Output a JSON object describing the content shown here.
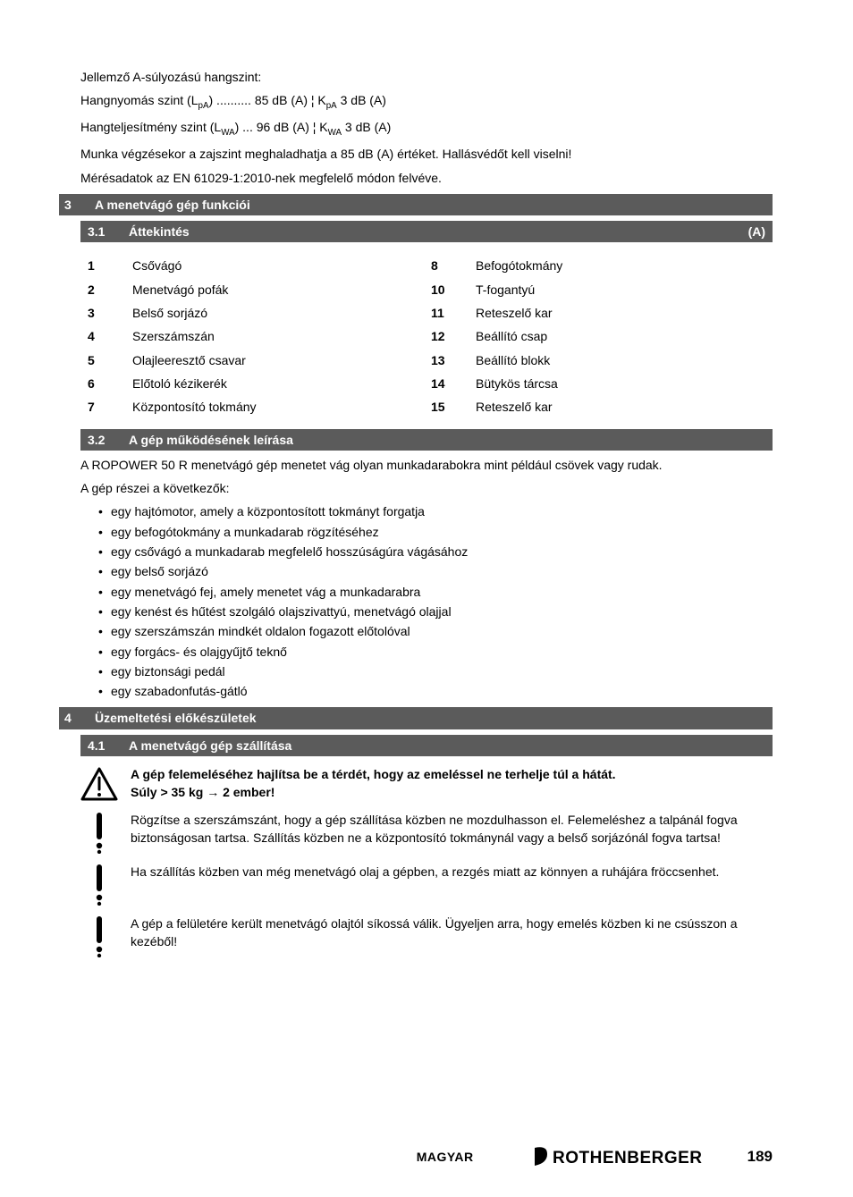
{
  "intro": {
    "heading": "Jellemző A-súlyozású hangszint:",
    "line1_prefix": "Hangnyomás szint (L",
    "line1_sub": "pA",
    "line1_mid": ")  ..........  85 dB (A)  ¦  K",
    "line1_sub2": "pA",
    "line1_suffix": "  3 dB (A)",
    "line2_prefix": "Hangteljesítmény szint (L",
    "line2_sub": "WA",
    "line2_mid": ")  ...  96 dB (A)  ¦  K",
    "line2_sub2": "WA",
    "line2_suffix": " 3 dB (A)",
    "line3": "Munka végzésekor a zajszint meghaladhatja a 85 dB (A) értéket. Hallásvédőt kell viselni!",
    "line4": "Mérésadatok az EN 61029-1:2010-nek megfelelő módon felvéve."
  },
  "s3": {
    "num": "3",
    "title": "A menetvágó gép funkciói",
    "s3_1": {
      "num": "3.1",
      "title": "Áttekintés",
      "marker": "(A)"
    },
    "overview": [
      {
        "n": "1",
        "label": "Csővágó",
        "n2": "8",
        "label2": "Befogótokmány"
      },
      {
        "n": "2",
        "label": "Menetvágó pofák",
        "n2": "10",
        "label2": "T-fogantyú"
      },
      {
        "n": "3",
        "label": "Belső sorjázó",
        "n2": "11",
        "label2": "Reteszelő kar"
      },
      {
        "n": "4",
        "label": "Szerszámszán",
        "n2": "12",
        "label2": "Beállító csap"
      },
      {
        "n": "5",
        "label": "Olajleeresztő csavar",
        "n2": "13",
        "label2": "Beállító blokk"
      },
      {
        "n": "6",
        "label": "Előtoló kézikerék",
        "n2": "14",
        "label2": "Bütykös tárcsa"
      },
      {
        "n": "7",
        "label": "Központosító tokmány",
        "n2": "15",
        "label2": "Reteszelő kar"
      }
    ],
    "s3_2": {
      "num": "3.2",
      "title": "A gép működésének leírása"
    },
    "desc1": "A ROPOWER 50 R menetvágó gép menetet vág olyan munkadarabokra mint például csövek vagy rudak.",
    "desc2": "A gép részei a következők:",
    "bullets": [
      "egy hajtómotor, amely a központosított tokmányt forgatja",
      "egy befogótokmány a munkadarab rögzítéséhez",
      "egy csővágó a munkadarab megfelelő hosszúságúra vágásához",
      "egy belső sorjázó",
      "egy menetvágó fej, amely menetet vág a munkadarabra",
      "egy kenést és hűtést szolgáló olajszivattyú, menetvágó olajjal",
      "egy szerszámszán mindkét oldalon fogazott előtolóval",
      "egy forgács- és olajgyűjtő teknő",
      "egy biztonsági pedál",
      "egy szabadonfutás-gátló"
    ]
  },
  "s4": {
    "num": "4",
    "title": "Üzemeltetési előkészületek",
    "s4_1": {
      "num": "4.1",
      "title": "A menetvágó gép szállítása"
    },
    "warning_bold1": "A gép felemeléséhez hajlítsa be a térdét, hogy az emeléssel ne terhelje túl a hátát.",
    "warning_bold2": "Súly > 35 kg → 2 ember!",
    "note1": "Rögzítse a szerszámszánt, hogy a gép szállítása közben ne mozdulhasson el. Felemeléshez a talpánál fogva biztonságosan tartsa. Szállítás közben ne a központosító tokmánynál vagy a belső sorjázónál fogva tartsa!",
    "note2": "Ha szállítás közben van még menetvágó olaj a gépben, a rezgés miatt az könnyen a ruhájára fröccsenhet.",
    "note3": "A gép a felületére került menetvágó olajtól síkossá válik. Ügyeljen arra, hogy emelés közben ki ne csússzon a kezéből!"
  },
  "footer": {
    "lang": "MAGYAR",
    "brand": "ROTHENBERGER",
    "pnum": "189"
  },
  "style": {
    "heading_bg": "#5b5b5b",
    "heading_color": "#ffffff",
    "body_color": "#000000",
    "fontsize_body": 14,
    "fontsize_pnum": 17
  }
}
